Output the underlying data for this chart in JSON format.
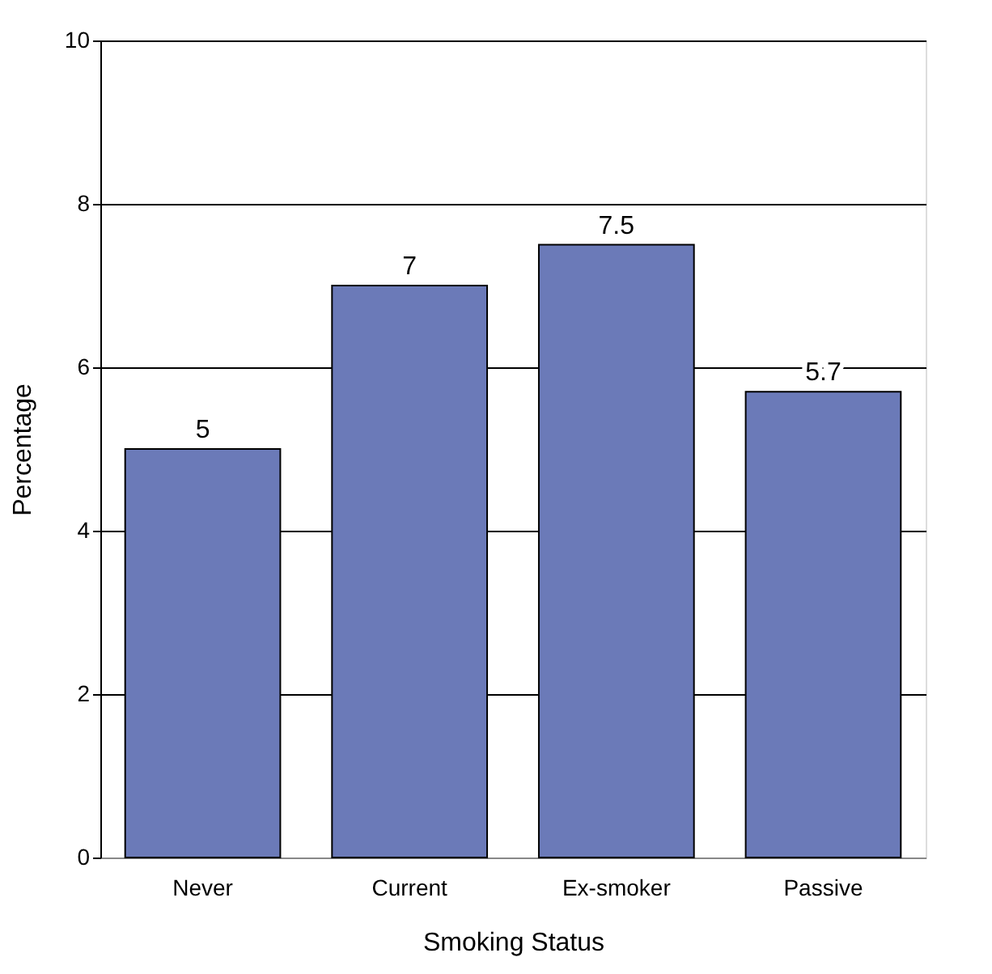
{
  "chart_data": {
    "type": "bar",
    "xlabel": "Smoking Status",
    "ylabel": "Percentage",
    "categories": [
      "Never",
      "Current",
      "Ex-smoker",
      "Passive"
    ],
    "values": [
      5,
      7,
      7.5,
      5.7
    ],
    "color": "#6b7ab8",
    "ylim": [
      0,
      10
    ],
    "yticks": [
      0,
      2,
      4,
      6,
      8,
      10
    ],
    "grid": "y",
    "data_labels": true
  }
}
